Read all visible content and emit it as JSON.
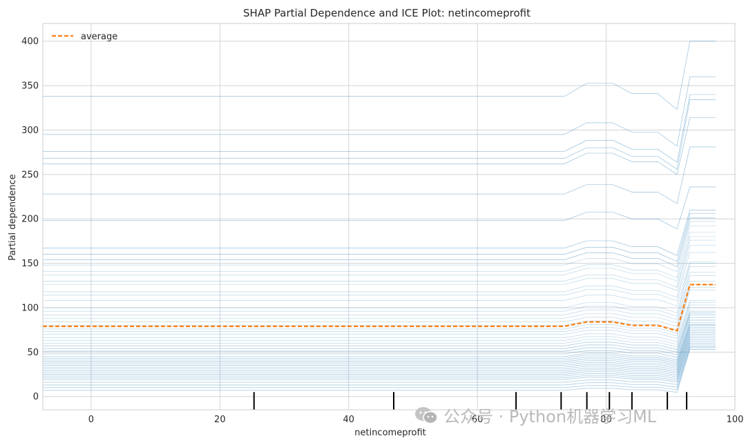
{
  "chart_data": {
    "type": "line",
    "title": "SHAP Partial Dependence and ICE Plot: netincomeprofit",
    "xlabel": "netincomeprofit",
    "ylabel": "Partial dependence",
    "xlim": [
      -7.5,
      100
    ],
    "ylim": [
      -15,
      420
    ],
    "xticks": [
      0,
      20,
      40,
      60,
      80,
      100
    ],
    "yticks": [
      0,
      50,
      100,
      150,
      200,
      250,
      300,
      350,
      400
    ],
    "grid": true,
    "legend": {
      "position": "top-left",
      "entries": [
        "average"
      ]
    },
    "colors": {
      "ice": "#1f77b4",
      "average": "#ff7f0e",
      "rug": "#000000",
      "grid": "#d0d3d8"
    },
    "x": [
      -7.5,
      72.5,
      73.5,
      77,
      81,
      84,
      88,
      91,
      93,
      97
    ],
    "average": [
      79,
      79,
      79,
      84,
      84,
      80,
      80,
      74,
      126,
      126
    ],
    "ice_base_levels": [
      338,
      295,
      276,
      268,
      262,
      228,
      198,
      167,
      160,
      154,
      148,
      141,
      137,
      130,
      126,
      118,
      114,
      108,
      100,
      96,
      92,
      88,
      84,
      80,
      76,
      73,
      70,
      66,
      63,
      60,
      57,
      54,
      51,
      48,
      45,
      43,
      41,
      39,
      37,
      35,
      33,
      31,
      29,
      27,
      25,
      23,
      21,
      19,
      16,
      13,
      10,
      7
    ],
    "ice_final_levels": [
      400,
      360,
      340,
      334,
      314,
      281,
      236,
      210,
      206,
      201,
      197,
      192,
      185,
      180,
      176,
      170,
      162,
      152,
      150,
      146,
      140,
      136,
      130,
      126,
      123,
      120,
      108,
      106,
      103,
      100,
      96,
      94,
      92,
      89,
      86,
      83,
      81,
      80,
      78,
      76,
      74,
      72,
      70,
      68,
      66,
      64,
      62,
      60,
      58,
      56,
      55,
      53
    ],
    "rug": [
      25.3,
      47,
      66,
      73,
      77,
      80.5,
      84,
      89.5,
      92.5
    ]
  },
  "watermark": "公众号 · Python机器学习ML"
}
